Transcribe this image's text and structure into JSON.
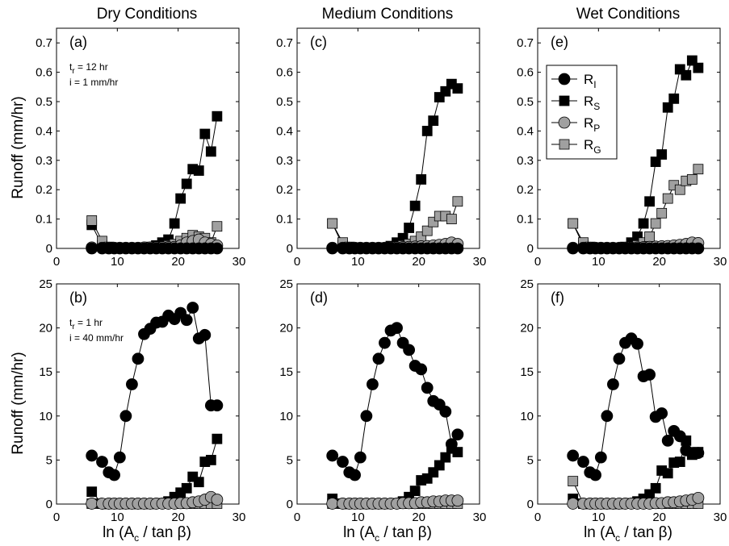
{
  "chart_data": {
    "type": "scatter",
    "shared": {
      "column_titles": [
        "Dry Conditions",
        "Medium Conditions",
        "Wet Conditions"
      ],
      "ylabel": "Runoff (mm/hr)",
      "xlabel_main": "ln (A",
      "xlabel_sub": "c",
      "xlabel_tail": " / tan β)",
      "xlim": [
        0,
        30
      ],
      "xticks": [
        0,
        10,
        20,
        30
      ],
      "top_ylim": [
        0,
        0.75
      ],
      "top_yticks": [
        0,
        0.1,
        0.2,
        0.3,
        0.4,
        0.5,
        0.6,
        0.7
      ],
      "top_ytick_labels": [
        "0",
        "0.1",
        "0.2",
        "0.3",
        "0.4",
        "0.5",
        "0.6",
        "0.7"
      ],
      "bottom_ylim": [
        0,
        25
      ],
      "bottom_yticks": [
        0,
        5,
        10,
        15,
        20,
        25
      ],
      "bottom_ytick_labels": [
        "0",
        "5",
        "10",
        "15",
        "20",
        "25"
      ],
      "x": [
        5.8,
        7.5,
        8.6,
        9.5,
        10.4,
        11.4,
        12.4,
        13.4,
        14.4,
        15.4,
        16.4,
        17.4,
        18.4,
        19.4,
        20.4,
        21.4,
        22.4,
        23.4,
        24.4,
        25.4,
        26.4
      ],
      "legend": [
        {
          "label": "R",
          "sub": "I",
          "marker": "circle",
          "fill": "#000000"
        },
        {
          "label": "R",
          "sub": "S",
          "marker": "square",
          "fill": "#000000"
        },
        {
          "label": "R",
          "sub": "P",
          "marker": "circle",
          "fill": "#a0a0a0"
        },
        {
          "label": "R",
          "sub": "G",
          "marker": "square",
          "fill": "#a0a0a0"
        }
      ]
    },
    "panels": [
      {
        "label": "(a)",
        "row": 0,
        "col": 0,
        "annotation": [
          {
            "main": "t",
            "sub": "r",
            "tail": " = 12 hr"
          },
          {
            "main": "i = 1 mm/hr",
            "sub": "",
            "tail": ""
          }
        ],
        "series": [
          {
            "name": "R_I",
            "marker": "circle",
            "fill": "#000000",
            "values": [
              0,
              0,
              0,
              0,
              0,
              0,
              0,
              0,
              0,
              0,
              0,
              0,
              0,
              0,
              0,
              0,
              0,
              0,
              0,
              0,
              0
            ]
          },
          {
            "name": "R_S",
            "marker": "square",
            "fill": "#000000",
            "values": [
              0.08,
              0.01,
              0,
              0,
              0,
              0,
              0,
              0,
              0,
              0.005,
              0.01,
              0.02,
              0.03,
              0.085,
              0.17,
              0.22,
              0.27,
              0.265,
              0.39,
              0.33,
              0.45
            ]
          },
          {
            "name": "R_P",
            "marker": "circle",
            "fill": "#a0a0a0",
            "values": [
              0.003,
              0.002,
              0.002,
              0.002,
              0.002,
              0.002,
              0.002,
              0.002,
              0.003,
              0.003,
              0.003,
              0.004,
              0.004,
              0.005,
              0.01,
              0.02,
              0.025,
              0.03,
              0.02,
              0.015,
              0.01
            ]
          },
          {
            "name": "R_G",
            "marker": "square",
            "fill": "#a0a0a0",
            "values": [
              0.095,
              0.025,
              0.005,
              0.002,
              0.002,
              0.002,
              0.002,
              0.002,
              0.003,
              0.003,
              0.004,
              0.005,
              0.01,
              0.015,
              0.025,
              0.035,
              0.045,
              0.04,
              0.035,
              0.02,
              0.075
            ]
          }
        ]
      },
      {
        "label": "(c)",
        "row": 0,
        "col": 1,
        "annotation": [],
        "series": [
          {
            "name": "R_I",
            "marker": "circle",
            "fill": "#000000",
            "values": [
              0,
              0,
              0,
              0,
              0,
              0,
              0,
              0,
              0,
              0,
              0,
              0,
              0,
              0,
              0,
              0,
              0,
              0,
              0,
              0,
              0
            ]
          },
          {
            "name": "R_S",
            "marker": "square",
            "fill": "#000000",
            "values": [
              0.085,
              0.01,
              0,
              0,
              0,
              0,
              0,
              0,
              0.003,
              0.008,
              0.02,
              0.035,
              0.07,
              0.145,
              0.235,
              0.4,
              0.435,
              0.515,
              0.535,
              0.56,
              0.545
            ]
          },
          {
            "name": "R_P",
            "marker": "circle",
            "fill": "#a0a0a0",
            "values": [
              0.002,
              0.002,
              0.002,
              0.002,
              0.002,
              0.002,
              0.002,
              0.002,
              0.002,
              0.002,
              0.003,
              0.004,
              0.005,
              0.006,
              0.007,
              0.008,
              0.01,
              0.012,
              0.015,
              0.02,
              0.015
            ]
          },
          {
            "name": "R_G",
            "marker": "square",
            "fill": "#a0a0a0",
            "values": [
              0.085,
              0.02,
              0.005,
              0.002,
              0.002,
              0.002,
              0.002,
              0.002,
              0.003,
              0.004,
              0.006,
              0.01,
              0.015,
              0.025,
              0.04,
              0.06,
              0.09,
              0.11,
              0.11,
              0.1,
              0.16
            ]
          }
        ]
      },
      {
        "label": "(e)",
        "row": 0,
        "col": 2,
        "annotation": [],
        "series": [
          {
            "name": "R_I",
            "marker": "circle",
            "fill": "#000000",
            "values": [
              0,
              0,
              0,
              0,
              0,
              0,
              0,
              0,
              0,
              0,
              0,
              0,
              0,
              0,
              0,
              0,
              0,
              0,
              0,
              0,
              0
            ]
          },
          {
            "name": "R_S",
            "marker": "square",
            "fill": "#000000",
            "values": [
              0.085,
              0.01,
              0,
              0,
              0,
              0,
              0,
              0,
              0.005,
              0.02,
              0.04,
              0.085,
              0.16,
              0.295,
              0.32,
              0.48,
              0.51,
              0.61,
              0.59,
              0.64,
              0.615
            ]
          },
          {
            "name": "R_P",
            "marker": "circle",
            "fill": "#a0a0a0",
            "values": [
              0.002,
              0.002,
              0.002,
              0.002,
              0.002,
              0.002,
              0.002,
              0.002,
              0.002,
              0.002,
              0.003,
              0.004,
              0.005,
              0.006,
              0.007,
              0.008,
              0.01,
              0.012,
              0.015,
              0.02,
              0.018
            ]
          },
          {
            "name": "R_G",
            "marker": "square",
            "fill": "#a0a0a0",
            "values": [
              0.085,
              0.02,
              0.005,
              0.002,
              0.002,
              0.002,
              0.002,
              0.002,
              0.003,
              0.005,
              0.01,
              0.02,
              0.04,
              0.085,
              0.12,
              0.17,
              0.215,
              0.2,
              0.23,
              0.235,
              0.27
            ]
          }
        ]
      },
      {
        "label": "(b)",
        "row": 1,
        "col": 0,
        "annotation": [
          {
            "main": "t",
            "sub": "r",
            "tail": " = 1 hr"
          },
          {
            "main": "i = 40 mm/hr",
            "sub": "",
            "tail": ""
          }
        ],
        "series": [
          {
            "name": "R_I",
            "marker": "circle",
            "fill": "#000000",
            "values": [
              5.5,
              4.8,
              3.6,
              3.3,
              5.3,
              10,
              13.6,
              16.5,
              19.3,
              19.9,
              20.6,
              20.7,
              21.4,
              21,
              21.7,
              20.9,
              22.3,
              18.8,
              19.2,
              11.2,
              11.2
            ]
          },
          {
            "name": "R_S",
            "marker": "square",
            "fill": "#000000",
            "values": [
              1.4,
              0.05,
              0,
              0,
              0,
              0,
              0,
              0,
              0,
              0,
              0.05,
              0.1,
              0.3,
              0.8,
              1.3,
              1.8,
              3.1,
              2.5,
              4.8,
              5,
              7.4
            ]
          },
          {
            "name": "R_P",
            "marker": "circle",
            "fill": "#a0a0a0",
            "values": [
              0.05,
              0.05,
              0.05,
              0.05,
              0.05,
              0.05,
              0.05,
              0.05,
              0.05,
              0.05,
              0.05,
              0.05,
              0.05,
              0.05,
              0.1,
              0.1,
              0.2,
              0.3,
              0.5,
              0.8,
              0.5
            ]
          },
          {
            "name": "R_G",
            "marker": "square",
            "fill": "#a0a0a0",
            "values": [
              0.05,
              0.05,
              0.05,
              0.05,
              0.05,
              0.05,
              0.05,
              0.05,
              0.05,
              0.05,
              0.05,
              0.05,
              0.05,
              0.05,
              0.05,
              0.05,
              0.05,
              0.05,
              0.05,
              0.05,
              0.05
            ]
          }
        ]
      },
      {
        "label": "(d)",
        "row": 1,
        "col": 1,
        "annotation": [],
        "series": [
          {
            "name": "R_I",
            "marker": "circle",
            "fill": "#000000",
            "values": [
              5.5,
              4.8,
              3.6,
              3.3,
              5.3,
              10,
              13.6,
              16.5,
              18.3,
              19.7,
              20,
              18.3,
              17.5,
              15.7,
              15.3,
              13.2,
              11.7,
              11.3,
              10.5,
              6.8,
              7.9
            ]
          },
          {
            "name": "R_S",
            "marker": "square",
            "fill": "#000000",
            "values": [
              0.6,
              0.05,
              0,
              0,
              0,
              0,
              0,
              0,
              0,
              0.05,
              0.1,
              0.3,
              0.8,
              1.5,
              2.7,
              2.9,
              3.6,
              4.4,
              5.3,
              6.3,
              5.9
            ]
          },
          {
            "name": "R_P",
            "marker": "circle",
            "fill": "#a0a0a0",
            "values": [
              0.05,
              0.05,
              0.05,
              0.05,
              0.05,
              0.05,
              0.05,
              0.05,
              0.05,
              0.05,
              0.05,
              0.1,
              0.1,
              0.1,
              0.2,
              0.2,
              0.3,
              0.3,
              0.4,
              0.4,
              0.4
            ]
          },
          {
            "name": "R_G",
            "marker": "square",
            "fill": "#a0a0a0",
            "values": [
              0.05,
              0.05,
              0.05,
              0.05,
              0.05,
              0.05,
              0.05,
              0.05,
              0.05,
              0.05,
              0.05,
              0.05,
              0.05,
              0.05,
              0.05,
              0.05,
              0.05,
              0.05,
              0.05,
              0.05,
              0.05
            ]
          }
        ]
      },
      {
        "label": "(f)",
        "row": 1,
        "col": 2,
        "annotation": [],
        "series": [
          {
            "name": "R_I",
            "marker": "circle",
            "fill": "#000000",
            "values": [
              5.5,
              4.8,
              3.6,
              3.3,
              5.3,
              10,
              13.6,
              16.5,
              18.3,
              18.8,
              18.2,
              14.5,
              14.7,
              9.9,
              10.3,
              7.2,
              8.3,
              7.7,
              6.1,
              5.8,
              5.8
            ]
          },
          {
            "name": "R_S",
            "marker": "square",
            "fill": "#000000",
            "values": [
              0.6,
              0.05,
              0,
              0,
              0,
              0,
              0,
              0,
              0.05,
              0.1,
              0.3,
              0.6,
              1.1,
              1.8,
              3.8,
              3.5,
              4.7,
              4.8,
              7.2,
              5.6,
              5.9
            ]
          },
          {
            "name": "R_P",
            "marker": "circle",
            "fill": "#a0a0a0",
            "values": [
              0.05,
              0.05,
              0.05,
              0.05,
              0.05,
              0.05,
              0.05,
              0.05,
              0.05,
              0.05,
              0.05,
              0.05,
              0.05,
              0.1,
              0.1,
              0.2,
              0.2,
              0.3,
              0.4,
              0.5,
              0.7
            ]
          },
          {
            "name": "R_G",
            "marker": "square",
            "fill": "#a0a0a0",
            "values": [
              2.6,
              0.05,
              0.05,
              0.05,
              0.05,
              0.05,
              0.05,
              0.05,
              0.05,
              0.05,
              0.05,
              0.05,
              0.05,
              0.05,
              0.05,
              0.05,
              0.05,
              0.05,
              0.05,
              0.05,
              0.05
            ]
          }
        ]
      }
    ]
  }
}
